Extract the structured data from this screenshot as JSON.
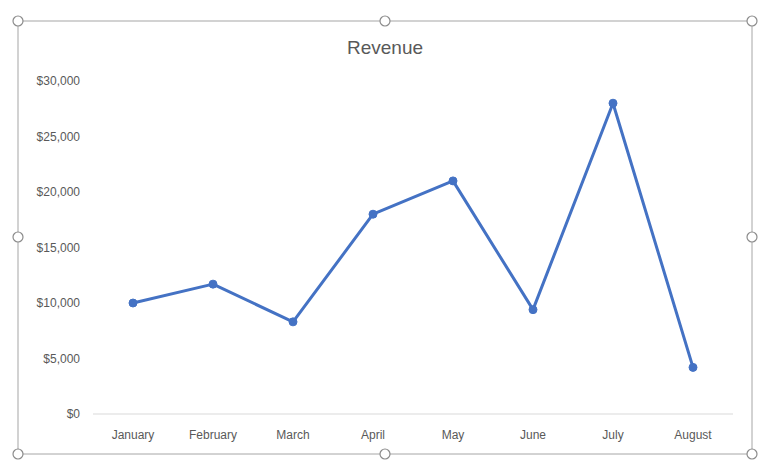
{
  "chart_data": {
    "type": "line",
    "title": "Revenue",
    "categories": [
      "January",
      "February",
      "March",
      "April",
      "May",
      "June",
      "July",
      "August"
    ],
    "values": [
      10000,
      11700,
      8300,
      18000,
      21000,
      9400,
      28000,
      4200
    ],
    "color": "#4472c4",
    "marker": "circle",
    "ylim": [
      0,
      30000
    ],
    "yticks": [
      {
        "value": 0,
        "label": "$0"
      },
      {
        "value": 5000,
        "label": "$5,000"
      },
      {
        "value": 10000,
        "label": "$10,000"
      },
      {
        "value": 15000,
        "label": "$15,000"
      },
      {
        "value": 20000,
        "label": "$20,000"
      },
      {
        "value": 25000,
        "label": "$25,000"
      },
      {
        "value": 30000,
        "label": "$30,000"
      }
    ],
    "grid": false
  }
}
